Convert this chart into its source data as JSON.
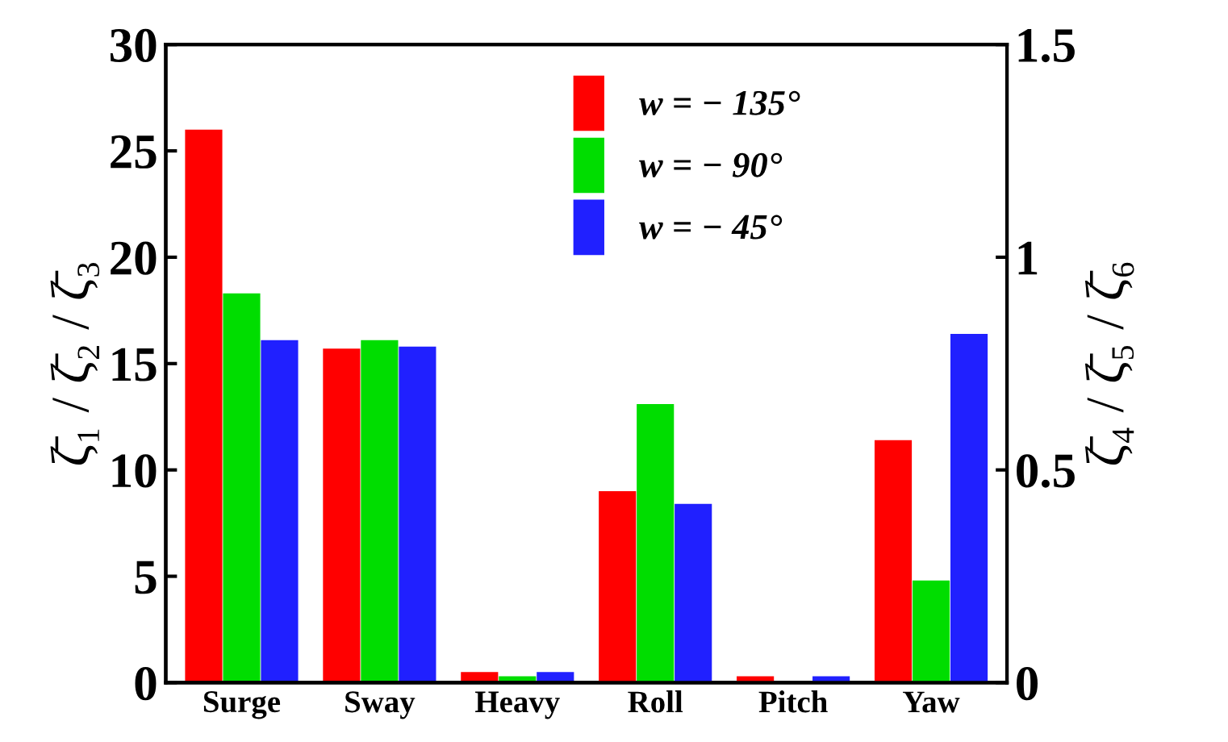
{
  "chart_data": {
    "type": "bar",
    "categories": [
      "Surge",
      "Sway",
      "Heavy",
      "Roll",
      "Pitch",
      "Yaw"
    ],
    "ylabel": "ζ̄₁ / ζ̄₂ / ζ̄₃",
    "y2label": "ζ̄₄ / ζ̄₅ / ζ̄₆",
    "ylim": [
      0,
      30
    ],
    "yticks": [
      0,
      5,
      10,
      15,
      20,
      25,
      30
    ],
    "y2lim": [
      0,
      1.5
    ],
    "y2ticks": [
      0,
      0.5,
      1,
      1.5
    ],
    "grid": false,
    "legend": "top",
    "series": [
      {
        "name": "w = − 135°",
        "color": "#ff0000",
        "values": [
          26.0,
          15.7,
          0.5,
          null,
          null,
          null
        ]
      },
      {
        "name": "w = − 90°",
        "color": "#00dd00",
        "values": [
          18.3,
          16.1,
          0.3,
          null,
          null,
          null
        ]
      },
      {
        "name": "w = − 45°",
        "color": "#2020ff",
        "values": [
          16.1,
          15.8,
          0.5,
          null,
          null,
          null
        ]
      },
      {
        "color": "#ff0000",
        "axis": "y2",
        "values": [
          null,
          null,
          null,
          0.45,
          0.015,
          0.57
        ]
      },
      {
        "color": "#00dd00",
        "axis": "y2",
        "values": [
          null,
          null,
          null,
          0.655,
          0,
          0.24
        ]
      },
      {
        "color": "#2020ff",
        "axis": "y2",
        "values": [
          null,
          null,
          null,
          0.42,
          0.015,
          0.82
        ]
      }
    ]
  }
}
